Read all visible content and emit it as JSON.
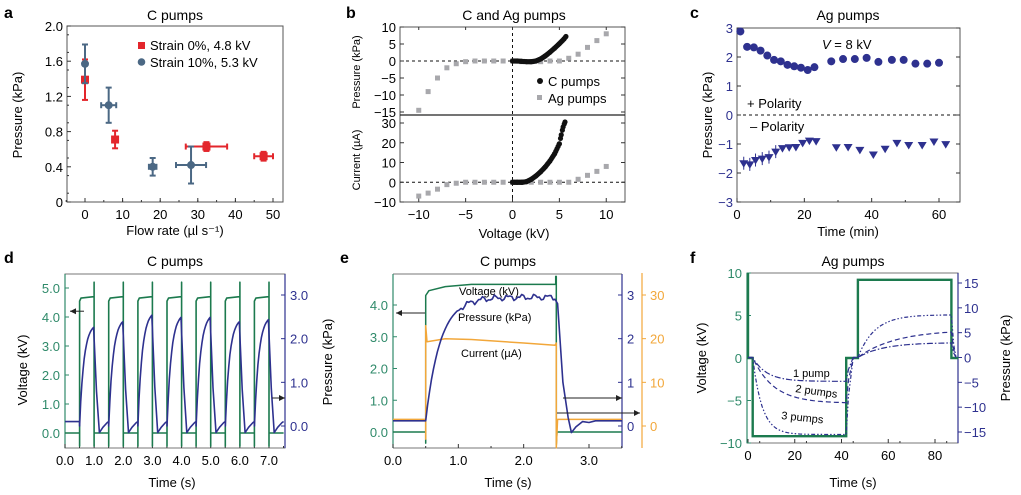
{
  "figure": {
    "colors": {
      "red": "#e3262c",
      "slate": "#4b6884",
      "navy": "#2e318f",
      "green": "#1c7a4e",
      "green_axis": "#2f8a6a",
      "orange": "#f2a73a",
      "grey": "#a8a8ac",
      "black": "#111111",
      "axis_dark": "#444444"
    }
  },
  "chart_data": [
    {
      "panel": "a",
      "type": "scatter",
      "title": "C pumps",
      "xlabel": "Flow rate (µl s⁻¹)",
      "ylabel": "Pressure (kPa)",
      "xlim": [
        -5,
        52
      ],
      "ylim": [
        0,
        2.0
      ],
      "xticks": [
        0,
        10,
        20,
        30,
        40,
        50
      ],
      "yticks": [
        0,
        0.4,
        0.8,
        1.2,
        1.6,
        2.0
      ],
      "ytick_labels": [
        "0",
        "0.4",
        "0.8",
        "1.2",
        "1.6",
        "2.0"
      ],
      "legend_position": "top-right",
      "series": [
        {
          "name": "Strain 0%, 4.8 kV",
          "marker": "square",
          "color": "#e3262c",
          "points": [
            {
              "x": 0,
              "y": 1.39,
              "xerr": 0,
              "yerr": 0.23
            },
            {
              "x": 8,
              "y": 0.71,
              "xerr": 0,
              "yerr": 0.1
            },
            {
              "x": 32.3,
              "y": 0.63,
              "xerr": 5.5,
              "yerr": 0.05
            },
            {
              "x": 47.5,
              "y": 0.52,
              "xerr": 2.5,
              "yerr": 0.05
            }
          ]
        },
        {
          "name": "Strain 10%, 5.3 kV",
          "marker": "circle",
          "color": "#4b6884",
          "points": [
            {
              "x": 0,
              "y": 1.57,
              "xerr": 0,
              "yerr": 0.22
            },
            {
              "x": 6.3,
              "y": 1.1,
              "xerr": 2.0,
              "yerr": 0.2
            },
            {
              "x": 18,
              "y": 0.4,
              "xerr": 1.0,
              "yerr": 0.1
            },
            {
              "x": 28.2,
              "y": 0.42,
              "xerr": 4.0,
              "yerr": 0.21
            }
          ]
        }
      ]
    },
    {
      "panel": "b",
      "type": "scatter",
      "title": "C and Ag pumps",
      "xlabel": "Voltage (kV)",
      "xlim": [
        -12,
        12
      ],
      "xticks": [
        -10,
        -5,
        0,
        5,
        10
      ],
      "legend_position": "right",
      "legend": [
        "C pumps",
        "Ag pumps"
      ],
      "subplots": [
        {
          "ylabel": "Pressure (kPa)",
          "ylim": [
            -16.5,
            10
          ],
          "yticks": [
            -15,
            -10,
            -5,
            0,
            5,
            10
          ],
          "ag_pumps": {
            "x": [
              -10,
              -9,
              -8,
              -7,
              -6,
              -5,
              -4,
              -3,
              -2,
              -1,
              0,
              1,
              2,
              3,
              4,
              5,
              6,
              7,
              8,
              9,
              10
            ],
            "y": [
              -14.5,
              -9,
              -5,
              -2,
              -0.8,
              -0.2,
              0,
              0,
              0,
              0,
              0,
              -0.2,
              -0.2,
              -0.2,
              0,
              0,
              0.8,
              2,
              4,
              6,
              8
            ]
          },
          "c_pumps": {
            "x": [
              0,
              0.5,
              1,
              1.5,
              2,
              2.5,
              3,
              3.5,
              4,
              4.5,
              5,
              5.5,
              5.7
            ],
            "y": [
              0,
              0,
              -0.1,
              -0.2,
              -0.2,
              0,
              0.6,
              1.5,
              2.6,
              3.8,
              5.1,
              6.5,
              7.2
            ]
          }
        },
        {
          "ylabel": "Current (µA)",
          "ylim": [
            -10,
            35
          ],
          "yticks": [
            -10,
            0,
            10,
            20,
            30
          ],
          "ag_pumps": {
            "x": [
              -10,
              -9,
              -8,
              -7,
              -6,
              -5,
              -4,
              -3,
              -2,
              -1,
              0,
              1,
              2,
              3,
              4,
              5,
              6,
              7,
              8,
              9,
              10
            ],
            "y": [
              -7,
              -5.5,
              -3.5,
              -1.2,
              -0.5,
              0,
              0,
              0,
              0,
              0,
              0,
              0,
              0,
              0,
              0,
              0,
              0,
              1.5,
              3.5,
              5.5,
              8
            ]
          },
          "c_pumps": {
            "x": [
              0,
              0.5,
              1,
              1.5,
              2,
              2.5,
              3,
              3.5,
              4,
              4.5,
              5,
              5.2,
              5.4,
              5.6
            ],
            "y": [
              0,
              0,
              0,
              0.3,
              1.5,
              3.2,
              5.3,
              7.8,
              10.8,
              14.5,
              19.5,
              24,
              28,
              30.5
            ]
          }
        }
      ]
    },
    {
      "panel": "c",
      "type": "scatter",
      "title": "Ag pumps",
      "annotation": "V = 8 kV",
      "labels": [
        "+ Polarity",
        "– Polarity"
      ],
      "xlabel": "Time (min)",
      "ylabel": "Pressure (kPa)",
      "xlim": [
        0,
        70
      ],
      "ylim": [
        -3,
        3
      ],
      "xticks": [
        0,
        20,
        40,
        60
      ],
      "yticks": [
        -3,
        -2,
        -1,
        0,
        1,
        2,
        3
      ],
      "series": [
        {
          "name": "+ Polarity",
          "marker": "circle",
          "x": [
            1,
            3,
            5,
            7,
            9,
            11,
            13,
            15,
            17,
            19,
            21,
            23,
            28,
            31.5,
            35,
            38.5,
            42,
            46,
            49.5,
            53,
            56.5,
            60
          ],
          "y": [
            2.88,
            2.35,
            2.33,
            2.22,
            2.05,
            1.9,
            1.85,
            1.73,
            1.68,
            1.63,
            1.55,
            1.65,
            1.85,
            1.93,
            1.93,
            1.97,
            1.83,
            1.9,
            1.9,
            1.77,
            1.77,
            1.8
          ]
        },
        {
          "name": "– Polarity",
          "marker": "triangle-down",
          "x": [
            2,
            3.8,
            5.5,
            7.5,
            9.5,
            11.5,
            13.5,
            15.5,
            17.5,
            19.5,
            21.5,
            23.5,
            29.5,
            33,
            36.5,
            40.5,
            44,
            47.5,
            51,
            55,
            58.5,
            62
          ],
          "y": [
            -1.68,
            -1.72,
            -1.57,
            -1.52,
            -1.47,
            -1.28,
            -1.16,
            -1.13,
            -1.12,
            -0.98,
            -0.9,
            -0.92,
            -1.13,
            -1.12,
            -1.22,
            -1.38,
            -1.18,
            -0.98,
            -1.05,
            -1.05,
            -0.93,
            -1.02
          ]
        }
      ]
    },
    {
      "panel": "d",
      "type": "line",
      "title": "C pumps",
      "xlabel": "Time (s)",
      "ylabel_left": "Voltage (kV)",
      "ylabel_right": "Pressure (kPa)",
      "xlim": [
        0,
        7.5
      ],
      "ylim_left": [
        -0.5,
        5.5
      ],
      "ylim_right": [
        -0.33,
        3.5
      ],
      "xticks": [
        0,
        1,
        2,
        3,
        4,
        5,
        6,
        7
      ],
      "xtick_labels": [
        "0.0",
        "1.0",
        "2.0",
        "3.0",
        "4.0",
        "5.0",
        "6.0",
        "7.0"
      ],
      "yticks_left": [
        0,
        1,
        2,
        3,
        4,
        5
      ],
      "ytick_labels_left": [
        "0.0",
        "1.0",
        "2.0",
        "3.0",
        "4.0",
        "5.0"
      ],
      "yticks_right": [
        0,
        1,
        2,
        3
      ],
      "ytick_labels_right": [
        "0.0",
        "1.0",
        "2.0",
        "3.0"
      ],
      "pulses": {
        "period_s": 1.0,
        "on_start_s": 0.5,
        "on_duration_s": 0.5,
        "count": 7,
        "voltage_on_kV": 4.7,
        "voltage_spike_kV": 5.1,
        "voltage_off_kV": 0.0,
        "peak_pressure_kPa": [
          2.27,
          2.4,
          2.55,
          2.5,
          2.5,
          2.4,
          2.45
        ],
        "baseline_pressure_kPa": 0.0,
        "undershoot_kPa": -0.15
      }
    },
    {
      "panel": "e",
      "type": "line",
      "title": "C pumps",
      "xlabel": "Time (s)",
      "xlim": [
        0,
        3.5
      ],
      "xticks": [
        0,
        1,
        2,
        3
      ],
      "xtick_labels": [
        "0.0",
        "1.0",
        "2.0",
        "3.0"
      ],
      "axes": [
        {
          "name": "Voltage (kV)",
          "ylim": [
            -0.5,
            4.9
          ],
          "yticks": [
            0,
            1,
            2,
            3,
            4
          ],
          "ytick_labels": [
            "0.0",
            "1.0",
            "2.0",
            "3.0",
            "4.0"
          ]
        },
        {
          "name": "Pressure (kPa)",
          "ylim": [
            -0.5,
            3.5
          ],
          "yticks": [
            0,
            1,
            2,
            3
          ]
        },
        {
          "name": "Current (µA)",
          "ylim": [
            -5,
            35
          ],
          "yticks": [
            0,
            10,
            20,
            30
          ]
        }
      ],
      "series": [
        {
          "name": "Voltage (kV)",
          "pulse_start_s": 0.5,
          "pulse_end_s": 2.5,
          "on_value": 4.65,
          "off_value": 0.0
        },
        {
          "name": "Pressure (kPa)",
          "baseline": 0.12,
          "plateau": 2.95,
          "undershoot": -0.15
        },
        {
          "name": "Current (µA)",
          "baseline": 1.5,
          "plateau_start": 19.5,
          "plateau_end": 18.5,
          "spike": 23
        }
      ]
    },
    {
      "panel": "f",
      "type": "line",
      "title": "Ag pumps",
      "xlabel": "Time (s)",
      "ylabel_left": "Voltage (kV)",
      "ylabel_right": "Pressure (kPa)",
      "xlim": [
        0,
        90
      ],
      "ylim_left": [
        -10,
        10
      ],
      "ylim_right": [
        -17,
        17
      ],
      "xticks": [
        0,
        20,
        40,
        60,
        80
      ],
      "yticks_left": [
        -10,
        -5,
        0,
        5,
        10
      ],
      "yticks_right": [
        -15,
        -10,
        -5,
        0,
        5,
        10,
        15
      ],
      "voltage_steps": [
        {
          "t0": 0,
          "t1": 2,
          "v": 0
        },
        {
          "t0": 2,
          "t1": 42,
          "v": -9.2
        },
        {
          "t0": 42,
          "t1": 47,
          "v": 0
        },
        {
          "t0": 47,
          "t1": 87,
          "v": 9.2
        },
        {
          "t0": 87,
          "t1": 90,
          "v": 0
        }
      ],
      "series": [
        {
          "name": "1 pump",
          "neg_plateau_kPa": -4.8,
          "pos_plateau_kPa": 3.0
        },
        {
          "name": "2 pumps",
          "neg_plateau_kPa": -9.2,
          "pos_plateau_kPa": 5.6
        },
        {
          "name": "3 pumps",
          "neg_plateau_kPa": -15.5,
          "pos_plateau_kPa": 8.6
        }
      ]
    }
  ],
  "panel_letters": [
    "a",
    "b",
    "c",
    "d",
    "e",
    "f"
  ]
}
